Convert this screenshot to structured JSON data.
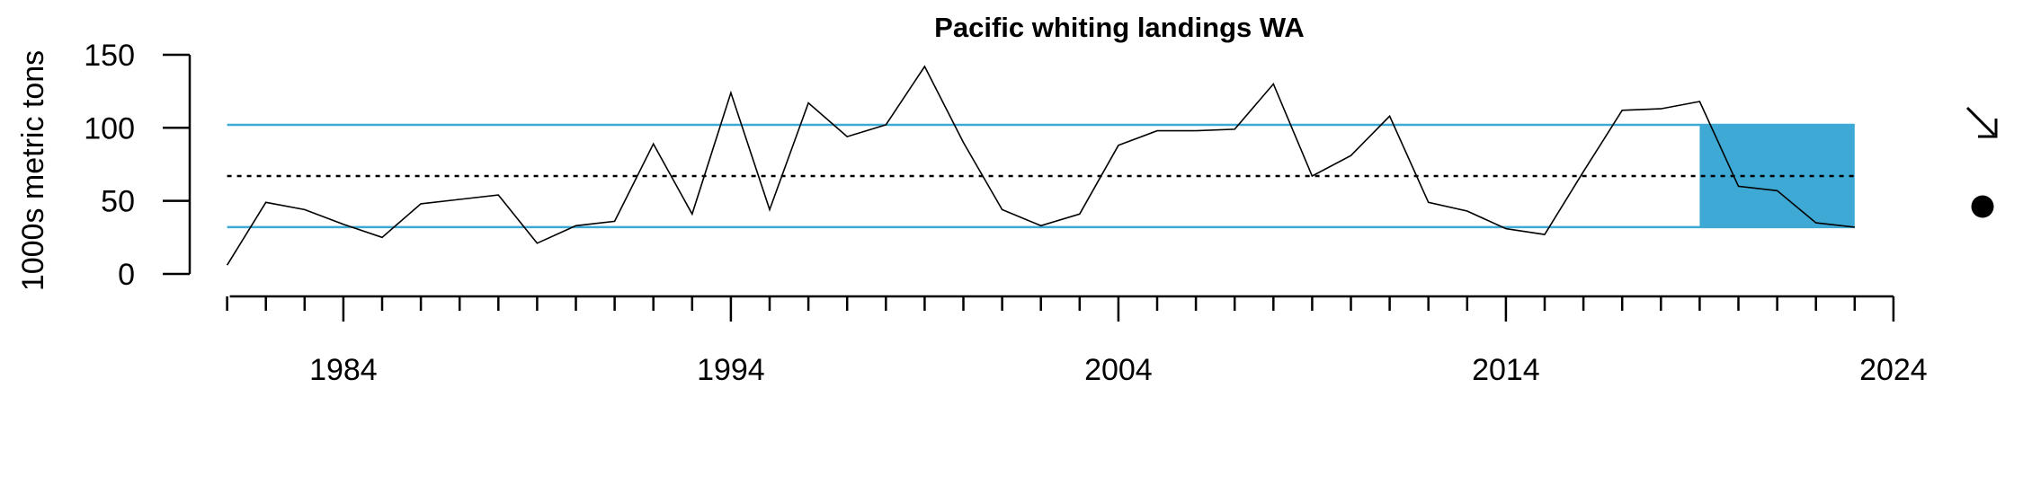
{
  "chart_data": {
    "type": "line",
    "title": "Pacific whiting landings WA",
    "ylabel": "1000s metric tons",
    "xlabel": "",
    "xlim": [
      1980,
      2024
    ],
    "ylim": [
      0,
      150
    ],
    "x_ticks": [
      1984,
      1994,
      2004,
      2014,
      2024
    ],
    "y_ticks": [
      0,
      50,
      100,
      150
    ],
    "grid": false,
    "series": [
      {
        "x": [
          1981,
          1982,
          1983,
          1984,
          1985,
          1986,
          1987,
          1988,
          1989,
          1990,
          1991,
          1992,
          1993,
          1994,
          1995,
          1996,
          1997,
          1998,
          1999,
          2000,
          2001,
          2002,
          2003,
          2004,
          2005,
          2006,
          2007,
          2008,
          2009,
          2010,
          2011,
          2012,
          2013,
          2014,
          2015,
          2016,
          2017,
          2018,
          2019,
          2020,
          2021,
          2022,
          2023
        ],
        "values": [
          6,
          49,
          44,
          34,
          25,
          48,
          51,
          54,
          21,
          33,
          36,
          89,
          41,
          124,
          44,
          117,
          94,
          102,
          142,
          90,
          44,
          33,
          41,
          88,
          98,
          98,
          99,
          130,
          67,
          81,
          108,
          49,
          43,
          31,
          27,
          70,
          112,
          113,
          118,
          60,
          57,
          35,
          32
        ],
        "color": "#000000"
      }
    ],
    "reference_lines": {
      "mean": 67,
      "upper_sd": 102,
      "lower_sd": 32,
      "mean_style": "dotted",
      "sd_color": "#3FA9D5"
    },
    "highlight": {
      "x_start": 2019,
      "x_end": 2023,
      "y_min": 32,
      "y_max": 102,
      "color": "#3FA9D5"
    },
    "indicators": {
      "trend_icon": "arrow-down-right-icon",
      "mean_icon": "filled-circle-icon"
    }
  }
}
